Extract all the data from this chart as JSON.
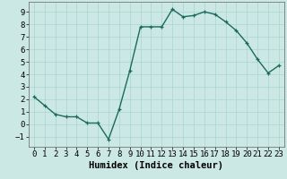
{
  "x": [
    0,
    1,
    2,
    3,
    4,
    5,
    6,
    7,
    8,
    9,
    10,
    11,
    12,
    13,
    14,
    15,
    16,
    17,
    18,
    19,
    20,
    21,
    22,
    23
  ],
  "y": [
    2.2,
    1.5,
    0.8,
    0.6,
    0.6,
    0.1,
    0.1,
    -1.2,
    1.2,
    4.3,
    7.8,
    7.8,
    7.8,
    9.2,
    8.6,
    8.7,
    9.0,
    8.8,
    8.2,
    7.5,
    6.5,
    5.2,
    4.1,
    4.7
  ],
  "line_color": "#1a6b5a",
  "bg_color": "#cce8e4",
  "grid_color": "#aad4cf",
  "xlabel": "Humidex (Indice chaleur)",
  "ylim": [
    -1.8,
    9.8
  ],
  "xlim": [
    -0.5,
    23.5
  ],
  "yticks": [
    -1,
    0,
    1,
    2,
    3,
    4,
    5,
    6,
    7,
    8,
    9
  ],
  "xticks": [
    0,
    1,
    2,
    3,
    4,
    5,
    6,
    7,
    8,
    9,
    10,
    11,
    12,
    13,
    14,
    15,
    16,
    17,
    18,
    19,
    20,
    21,
    22,
    23
  ],
  "marker": "+",
  "marker_size": 3.5,
  "linewidth": 1.0,
  "xlabel_fontsize": 7.5,
  "tick_fontsize": 6.5
}
